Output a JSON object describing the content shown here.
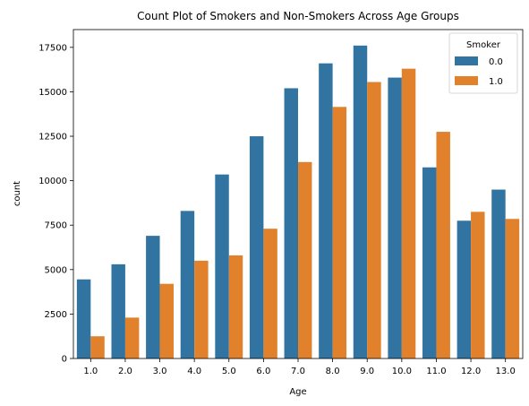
{
  "chart_data": {
    "type": "bar",
    "title": "Count Plot of Smokers and Non-Smokers Across Age Groups",
    "xlabel": "Age",
    "ylabel": "count",
    "categories": [
      "1.0",
      "2.0",
      "3.0",
      "4.0",
      "5.0",
      "6.0",
      "7.0",
      "8.0",
      "9.0",
      "10.0",
      "11.0",
      "12.0",
      "13.0"
    ],
    "series": [
      {
        "name": "0.0",
        "color": "#3274a1",
        "values": [
          4450,
          5300,
          6900,
          8300,
          10350,
          12500,
          15200,
          16600,
          17600,
          15800,
          10750,
          7750,
          9500
        ]
      },
      {
        "name": "1.0",
        "color": "#e1812c",
        "values": [
          1250,
          2300,
          4200,
          5500,
          5800,
          7300,
          11050,
          14150,
          15550,
          16300,
          12750,
          8250,
          7850
        ]
      }
    ],
    "ylim": [
      0,
      18500
    ],
    "yticks": [
      0,
      2500,
      5000,
      7500,
      10000,
      12500,
      15000,
      17500
    ],
    "yticklabels": [
      "0",
      "2500",
      "5000",
      "7500",
      "10000",
      "12500",
      "15000",
      "17500"
    ],
    "grid": false,
    "legend": {
      "title": "Smoker",
      "placement": "top-right"
    }
  }
}
